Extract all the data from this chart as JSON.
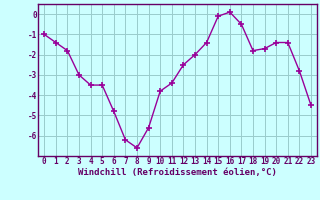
{
  "x": [
    0,
    1,
    2,
    3,
    4,
    5,
    6,
    7,
    8,
    9,
    10,
    11,
    12,
    13,
    14,
    15,
    16,
    17,
    18,
    19,
    20,
    21,
    22,
    23
  ],
  "y": [
    -1.0,
    -1.4,
    -1.8,
    -3.0,
    -3.5,
    -3.5,
    -4.8,
    -6.2,
    -6.6,
    -5.6,
    -3.8,
    -3.4,
    -2.5,
    -2.0,
    -1.4,
    -0.1,
    0.1,
    -0.5,
    -1.8,
    -1.7,
    -1.4,
    -1.4,
    -2.8,
    -4.5
  ],
  "line_color": "#990099",
  "marker": "+",
  "marker_size": 4,
  "background_color": "#ccffff",
  "grid_color": "#99cccc",
  "xlabel": "Windchill (Refroidissement éolien,°C)",
  "ylabel": "",
  "xlim": [
    -0.5,
    23.5
  ],
  "ylim": [
    -7.0,
    0.5
  ],
  "yticks": [
    0,
    -1,
    -2,
    -3,
    -4,
    -5,
    -6
  ],
  "xticks": [
    0,
    1,
    2,
    3,
    4,
    5,
    6,
    7,
    8,
    9,
    10,
    11,
    12,
    13,
    14,
    15,
    16,
    17,
    18,
    19,
    20,
    21,
    22,
    23
  ],
  "title": "",
  "xlabel_color": "#660066",
  "tick_color": "#660066",
  "spine_color": "#660066",
  "line_width": 1.0,
  "xlabel_fontsize": 6.5,
  "tick_fontsize": 5.5,
  "marker_edge_width": 1.2
}
